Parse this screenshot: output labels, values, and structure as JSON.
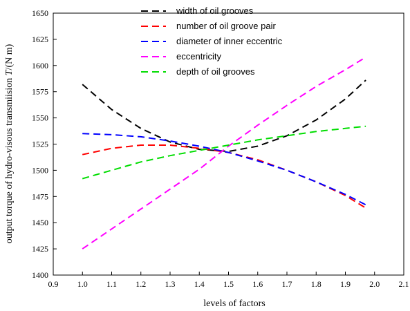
{
  "chart_data": {
    "type": "line",
    "title": "",
    "xlabel": "levels of factors",
    "ylabel_prefix": "output torque of  hydro-visous transmiision ",
    "ylabel_symbol": "T",
    "ylabel_unit": "/(N m)",
    "xlim": [
      0.9,
      2.1
    ],
    "ylim": [
      1400,
      1650
    ],
    "xticks": [
      "0.9",
      "1.0",
      "1.1",
      "1.2",
      "1.3",
      "1.4",
      "1.5",
      "1.6",
      "1.7",
      "1.8",
      "1.9",
      "2.0",
      "2.1"
    ],
    "yticks": [
      "1400",
      "1425",
      "1450",
      "1475",
      "1500",
      "1525",
      "1550",
      "1575",
      "1600",
      "1625",
      "1650"
    ],
    "grid": false,
    "legend_position": "top-center",
    "series": [
      {
        "name": "width of oil grooves",
        "color": "#000000",
        "x": [
          1.0,
          1.1,
          1.2,
          1.3,
          1.4,
          1.5,
          1.6,
          1.7,
          1.8,
          1.9,
          1.97
        ],
        "y": [
          1582,
          1558,
          1540,
          1527,
          1520,
          1518,
          1523,
          1533,
          1548,
          1568,
          1586
        ]
      },
      {
        "name": "number of oil groove pair",
        "color": "#ff0000",
        "x": [
          1.0,
          1.1,
          1.2,
          1.3,
          1.4,
          1.5,
          1.6,
          1.7,
          1.8,
          1.9,
          1.97
        ],
        "y": [
          1515,
          1521,
          1524,
          1524,
          1521,
          1517,
          1510,
          1500,
          1489,
          1476,
          1464
        ]
      },
      {
        "name": "diameter of inner eccentric",
        "color": "#0000ff",
        "x": [
          1.0,
          1.1,
          1.2,
          1.3,
          1.4,
          1.5,
          1.6,
          1.7,
          1.8,
          1.9,
          1.97
        ],
        "y": [
          1535,
          1534,
          1532,
          1528,
          1523,
          1517,
          1509,
          1500,
          1489,
          1477,
          1467
        ]
      },
      {
        "name": "eccentricity",
        "color": "#ff00ff",
        "x": [
          1.0,
          1.1,
          1.2,
          1.3,
          1.4,
          1.5,
          1.6,
          1.7,
          1.8,
          1.9,
          1.97
        ],
        "y": [
          1425,
          1444,
          1463,
          1482,
          1501,
          1523,
          1543,
          1562,
          1580,
          1596,
          1608
        ]
      },
      {
        "name": "depth of oil grooves",
        "color": "#00dd00",
        "x": [
          1.0,
          1.1,
          1.2,
          1.3,
          1.4,
          1.5,
          1.6,
          1.7,
          1.8,
          1.9,
          1.97
        ],
        "y": [
          1492,
          1500,
          1508,
          1514,
          1519,
          1524,
          1529,
          1533,
          1537,
          1540,
          1542
        ]
      }
    ]
  }
}
